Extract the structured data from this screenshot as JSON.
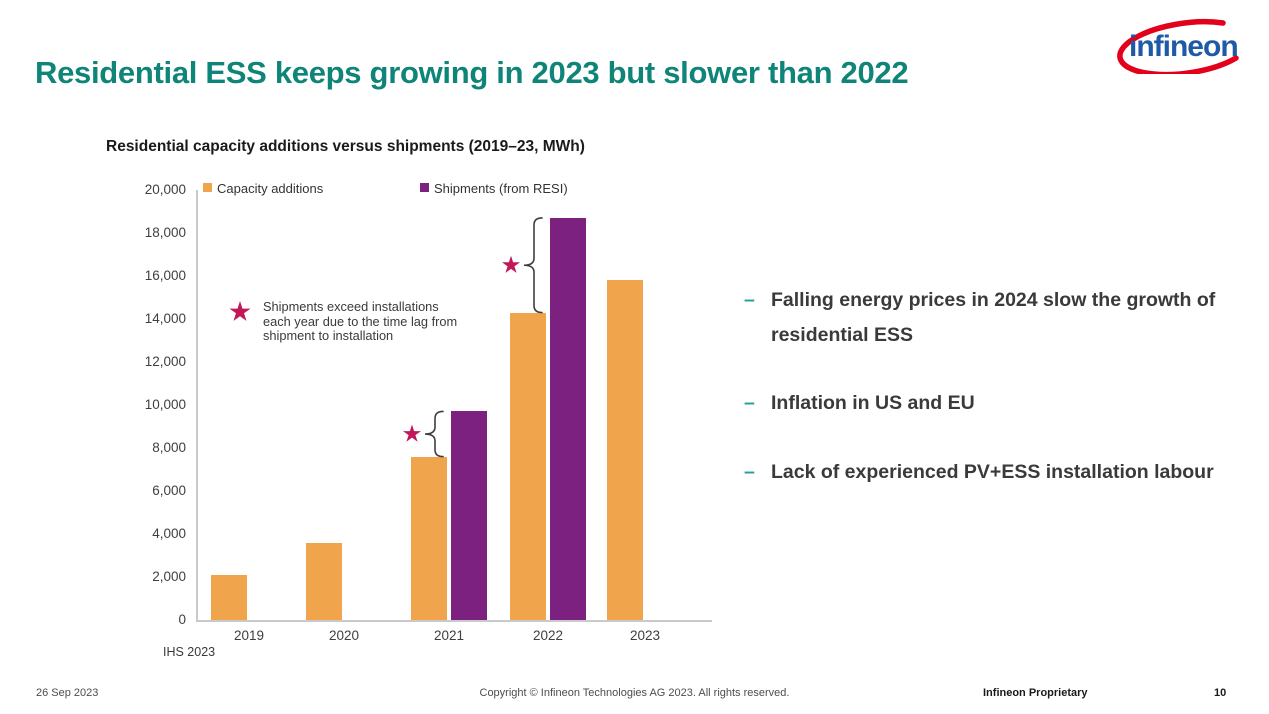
{
  "slide": {
    "title": "Residential ESS keeps growing in 2023 but slower than 2022",
    "logo": {
      "brand": "infineon",
      "blue": "#1E5AA5",
      "red": "#E2001A"
    }
  },
  "chart_data": {
    "type": "bar",
    "title": "Residential capacity additions versus shipments (2019–23, MWh)",
    "categories": [
      "2019",
      "2020",
      "2021",
      "2022",
      "2023"
    ],
    "series": [
      {
        "name": "Capacity additions",
        "color": "#F0A44C",
        "values": [
          2100,
          3600,
          7600,
          14300,
          15800
        ]
      },
      {
        "name": "Shipments (from RESI)",
        "color": "#7D2181",
        "values": [
          null,
          null,
          9700,
          18700,
          null
        ]
      }
    ],
    "xlabel": "",
    "ylabel": "",
    "ylim": [
      0,
      20000
    ],
    "ytick_step": 2000,
    "grid": false,
    "legend_position": "top-inside",
    "star_annotation": {
      "color": "#C2175B",
      "lines": [
        "Shipments exceed installations",
        "each year due to the time lag from",
        "shipment to installation"
      ],
      "marked_categories": [
        "2021",
        "2022"
      ]
    },
    "source": "IHS 2023"
  },
  "bullets": {
    "dash": "–",
    "items": [
      "Falling energy prices in 2024 slow the growth of residential ESS",
      "Inflation in US and EU",
      "Lack of experienced PV+ESS installation labour"
    ]
  },
  "footer": {
    "date": "26 Sep 2023",
    "copyright": "Copyright © Infineon Technologies AG 2023. All rights reserved.",
    "classification": "Infineon Proprietary",
    "page": "10"
  }
}
